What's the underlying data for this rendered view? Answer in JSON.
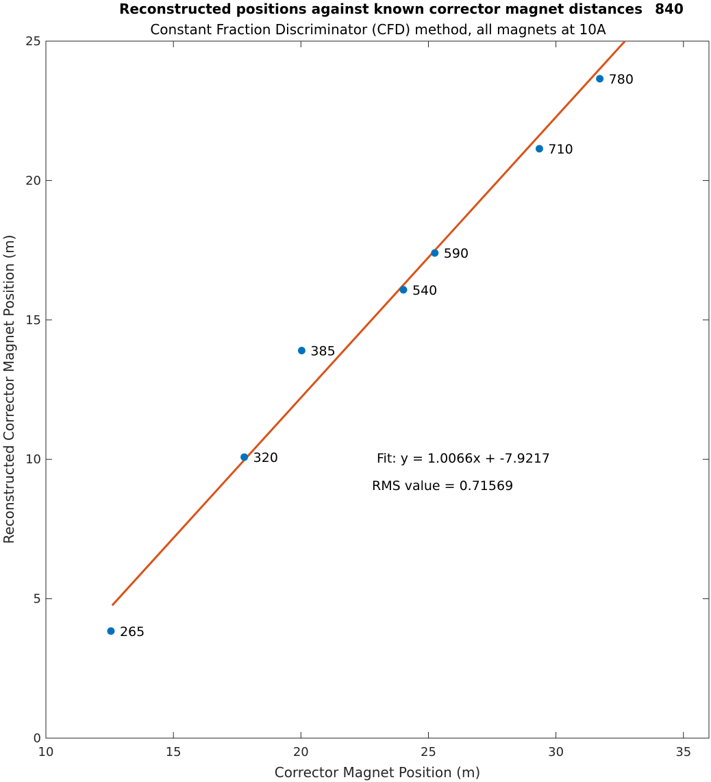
{
  "chart_data": {
    "type": "scatter",
    "title": "Reconstructed positions against known corrector magnet distances",
    "subtitle": "Constant Fraction Discriminator (CFD) method, all magnets at 10A",
    "xlabel": "Corrector Magnet Position (m)",
    "ylabel": "Reconstructed Corrector Magnet Position (m)",
    "xlim": [
      10,
      36
    ],
    "ylim": [
      0,
      25
    ],
    "xticks": [
      "10",
      "15",
      "20",
      "25",
      "30",
      "35"
    ],
    "yticks": [
      "0",
      "5",
      "10",
      "15",
      "20",
      "25"
    ],
    "grid": false,
    "points": [
      {
        "x": 12.55,
        "y": 3.84,
        "label": "265"
      },
      {
        "x": 17.78,
        "y": 10.08,
        "label": "320"
      },
      {
        "x": 20.03,
        "y": 13.9,
        "label": "385"
      },
      {
        "x": 24.02,
        "y": 16.08,
        "label": "540"
      },
      {
        "x": 25.25,
        "y": 17.4,
        "label": "590"
      },
      {
        "x": 29.35,
        "y": 21.14,
        "label": "710"
      },
      {
        "x": 31.72,
        "y": 23.65,
        "label": "780"
      }
    ],
    "fit": {
      "slope": 1.0066,
      "intercept": -7.9217,
      "x_range": [
        12.6,
        32.7
      ]
    },
    "overflow_label": "840",
    "annotations": {
      "fit_text": "Fit: y = 1.0066x + -7.9217",
      "rms_text": "RMS value = 0.71569"
    },
    "colors": {
      "points": "#0072BD",
      "fit": "#D95319",
      "axes": "#262626"
    }
  }
}
